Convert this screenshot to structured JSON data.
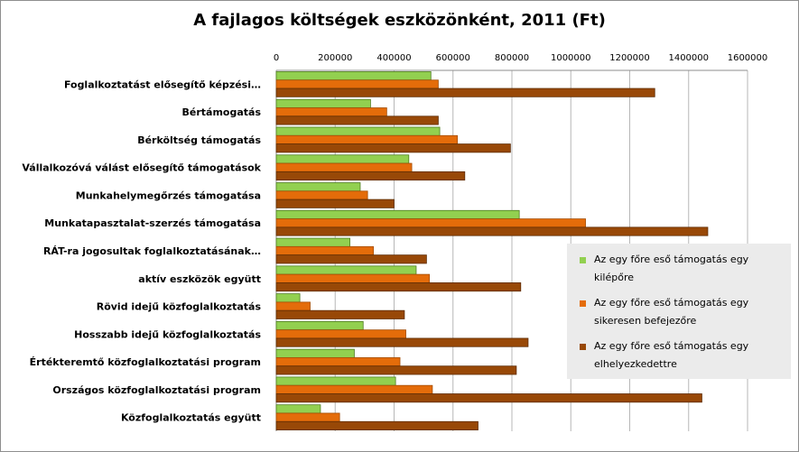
{
  "chart_data": {
    "type": "bar",
    "orientation": "horizontal",
    "title": "A fajlagos költségek eszközönként, 2011 (Ft)",
    "xlim": [
      0,
      1600000
    ],
    "x_ticks": [
      "0",
      "200000",
      "400000",
      "600000",
      "800000",
      "1000000",
      "1200000",
      "1400000",
      "1600000"
    ],
    "x_axis_position": "top",
    "grid": true,
    "legend_position": "right",
    "categories": [
      "Foglalkoztatást elősegítő képzési…",
      "Bértámogatás",
      "Bérköltség támogatás",
      "Vállalkozóvá válást elősegítő támogatások",
      "Munkahelymegőrzés támogatása",
      "Munkatapasztalat-szerzés támogatása",
      "RÁT-ra jogosultak foglalkoztatásának…",
      "aktív eszközök együtt",
      "Rövid idejű közfoglalkoztatás",
      "Hosszabb idejű közfoglalkoztatás",
      "Értékteremtő közfoglalkoztatási program",
      "Országos közfoglalkoztatási program",
      "Közfoglalkoztatás együtt"
    ],
    "series": [
      {
        "name": "Az egy főre eső támogatás egy kilépőre",
        "color": "#92d050",
        "values": [
          525000,
          320000,
          555000,
          450000,
          285000,
          825000,
          250000,
          475000,
          80000,
          295000,
          265000,
          405000,
          150000
        ]
      },
      {
        "name": "Az egy főre eső támogatás egy sikeresen befejezőre",
        "color": "#e46c0a",
        "values": [
          550000,
          375000,
          615000,
          460000,
          310000,
          1050000,
          330000,
          520000,
          115000,
          440000,
          420000,
          530000,
          215000
        ]
      },
      {
        "name": "Az egy főre eső támogatás egy elhelyezkedettre",
        "color": "#984807",
        "values": [
          1285000,
          550000,
          795000,
          640000,
          400000,
          1465000,
          510000,
          830000,
          435000,
          855000,
          815000,
          1445000,
          685000
        ]
      }
    ]
  },
  "legend": {
    "items": [
      {
        "line1": "Az egy főre eső támogatás egy",
        "line2": "kilépőre",
        "color": "#92d050"
      },
      {
        "line1": "Az egy főre eső támogatás egy",
        "line2": "sikeresen befejezőre",
        "color": "#e46c0a"
      },
      {
        "line1": "Az egy főre eső támogatás egy",
        "line2": "elhelyezkedettre",
        "color": "#984807"
      }
    ]
  }
}
